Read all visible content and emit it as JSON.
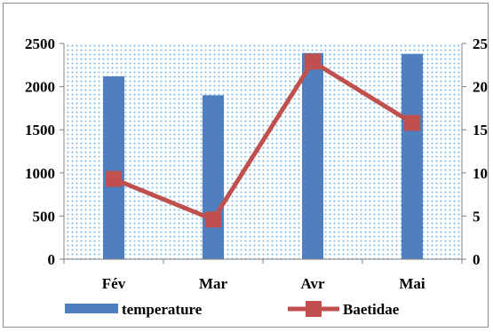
{
  "chart_data": {
    "type": "bar",
    "categories": [
      "Fév",
      "Mar",
      "Avr",
      "Mai"
    ],
    "series": [
      {
        "name": "temperature",
        "kind": "bar",
        "axis": "left",
        "values": [
          2120,
          1900,
          2390,
          2380
        ],
        "color": "#4f7fbf"
      },
      {
        "name": "Baetidae",
        "kind": "line",
        "axis": "right",
        "values": [
          9.3,
          4.6,
          22.9,
          15.8
        ],
        "color": "#c0504d"
      }
    ],
    "y_left": {
      "ylim": [
        0,
        2500
      ],
      "ticks": [
        "0",
        "500",
        "1000",
        "1500",
        "2000",
        "2500"
      ]
    },
    "y_right": {
      "ylim": [
        0,
        25
      ],
      "ticks": [
        "0",
        "5",
        "10",
        "15",
        "20",
        "25"
      ]
    },
    "plot_background": "dotted-light-blue",
    "legend_position": "bottom",
    "title": "",
    "xlabel": "",
    "ylabel": ""
  }
}
